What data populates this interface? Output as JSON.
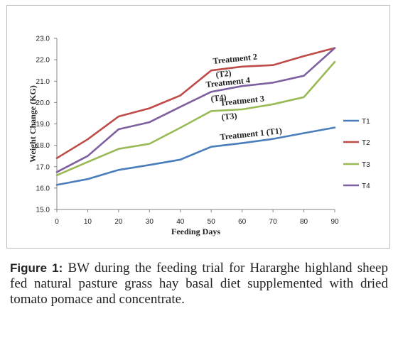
{
  "chart_data": {
    "type": "line",
    "title": "",
    "xlabel": "Feeding Days",
    "ylabel": "Weight Change (KG)",
    "x": [
      0,
      10,
      20,
      30,
      40,
      50,
      60,
      70,
      80,
      90
    ],
    "xlim": [
      0,
      90
    ],
    "ylim": [
      15.0,
      23.0
    ],
    "x_ticks": [
      "0",
      "10",
      "20",
      "30",
      "40",
      "50",
      "60",
      "70",
      "80",
      "90"
    ],
    "y_ticks": [
      "15.0",
      "16.0",
      "17.0",
      "18.0",
      "19.0",
      "20.0",
      "21.0",
      "22.0",
      "23.0"
    ],
    "grid": false,
    "legend_position": "right",
    "series": [
      {
        "name": "T1",
        "color": "#4a7ebb",
        "values": [
          16.15,
          16.42,
          16.85,
          17.08,
          17.33,
          17.93,
          18.1,
          18.3,
          18.57,
          18.83
        ]
      },
      {
        "name": "T2",
        "color": "#be4b48",
        "values": [
          17.4,
          18.28,
          19.35,
          19.73,
          20.33,
          21.5,
          21.68,
          21.75,
          22.17,
          22.55
        ]
      },
      {
        "name": "T3",
        "color": "#98b954",
        "values": [
          16.6,
          17.22,
          17.83,
          18.07,
          18.82,
          19.6,
          19.68,
          19.92,
          20.25,
          21.9
        ]
      },
      {
        "name": "T4",
        "color": "#7d60a0",
        "values": [
          16.75,
          17.5,
          18.75,
          19.08,
          19.8,
          20.5,
          20.77,
          20.93,
          21.25,
          22.55
        ]
      }
    ],
    "annotations": [
      {
        "id": "t2",
        "lines": [
          "Treatment 2",
          "(T2)"
        ]
      },
      {
        "id": "t4",
        "lines": [
          "Treatment 4",
          "(T4)"
        ]
      },
      {
        "id": "t3",
        "lines": [
          "Treatment 3",
          "(T3)"
        ]
      },
      {
        "id": "t1",
        "lines": [
          "Treatment 1 (T1)"
        ]
      }
    ]
  },
  "caption": {
    "label": "Figure 1:",
    "text": " BW during the feeding trial for Hararghe highland sheep fed natural pasture grass hay basal diet supplemented with dried tomato pomace and concentrate."
  }
}
